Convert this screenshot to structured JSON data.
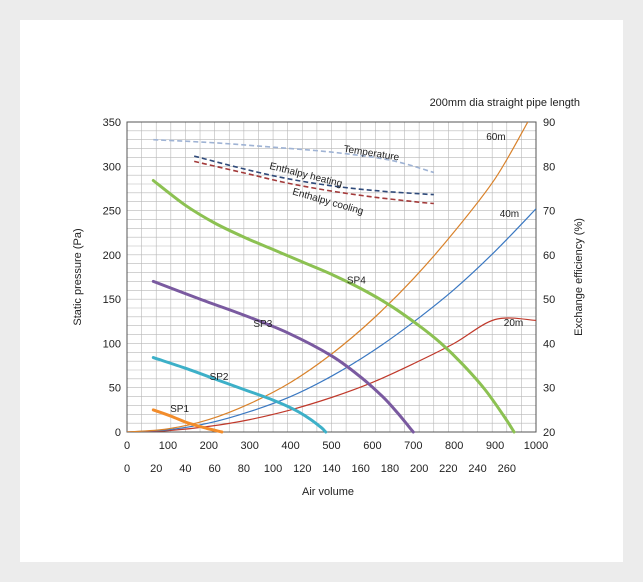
{
  "chart_data": {
    "type": "line",
    "title": "200mm dia straight pipe length",
    "xlabel": "Air volume",
    "ylabel": "Static pressure (Pa)",
    "y2label": "Exchange efficiency (%)",
    "x_primary": {
      "ticks": [
        0,
        100,
        200,
        300,
        400,
        500,
        600,
        700,
        800,
        900,
        1000
      ],
      "range": [
        0,
        1000
      ]
    },
    "x_secondary": {
      "ticks": [
        0,
        20,
        40,
        60,
        80,
        100,
        120,
        140,
        160,
        180,
        200,
        220,
        240,
        260
      ],
      "range": [
        0,
        280
      ]
    },
    "y_primary": {
      "ticks": [
        0,
        50,
        100,
        150,
        200,
        250,
        300,
        350
      ],
      "range": [
        0,
        350
      ]
    },
    "y_secondary": {
      "ticks": [
        20,
        30,
        40,
        50,
        60,
        70,
        80,
        90
      ],
      "range": [
        20,
        90
      ]
    },
    "grid": true,
    "fan_curves": [
      {
        "name": "SP1",
        "color": "#f28c2b",
        "points": [
          [
            18,
            25
          ],
          [
            30,
            18
          ],
          [
            42,
            10
          ],
          [
            55,
            4
          ],
          [
            65,
            0
          ]
        ]
      },
      {
        "name": "SP2",
        "color": "#3db0c8",
        "points": [
          [
            18,
            84
          ],
          [
            40,
            72
          ],
          [
            60,
            60
          ],
          [
            80,
            48
          ],
          [
            100,
            36
          ],
          [
            115,
            25
          ],
          [
            125,
            15
          ],
          [
            133,
            5
          ],
          [
            136,
            0
          ]
        ]
      },
      {
        "name": "SP3",
        "color": "#7a5aa0",
        "points": [
          [
            18,
            170
          ],
          [
            50,
            150
          ],
          [
            80,
            132
          ],
          [
            110,
            112
          ],
          [
            140,
            86
          ],
          [
            160,
            62
          ],
          [
            175,
            40
          ],
          [
            185,
            22
          ],
          [
            192,
            8
          ],
          [
            196,
            0
          ]
        ]
      },
      {
        "name": "SP4",
        "color": "#8cc152",
        "points": [
          [
            18,
            284
          ],
          [
            40,
            256
          ],
          [
            60,
            236
          ],
          [
            80,
            220
          ],
          [
            100,
            206
          ],
          [
            120,
            192
          ],
          [
            140,
            178
          ],
          [
            160,
            162
          ],
          [
            180,
            143
          ],
          [
            200,
            120
          ],
          [
            215,
            100
          ],
          [
            230,
            76
          ],
          [
            245,
            48
          ],
          [
            258,
            18
          ],
          [
            265,
            0
          ]
        ]
      }
    ],
    "pipe_curves": [
      {
        "name": "20m",
        "color": "#c0392b",
        "points": [
          [
            0,
            0
          ],
          [
            100,
            1.6
          ],
          [
            200,
            6.3
          ],
          [
            300,
            14
          ],
          [
            400,
            25
          ],
          [
            500,
            39
          ],
          [
            600,
            56
          ],
          [
            700,
            77
          ],
          [
            800,
            100
          ],
          [
            900,
            127
          ],
          [
            1000,
            126
          ]
        ]
      },
      {
        "name": "40m",
        "color": "#3a78c2",
        "points": [
          [
            0,
            0
          ],
          [
            100,
            2.5
          ],
          [
            200,
            10
          ],
          [
            300,
            23
          ],
          [
            400,
            40
          ],
          [
            500,
            63
          ],
          [
            600,
            91
          ],
          [
            700,
            124
          ],
          [
            800,
            161
          ],
          [
            900,
            204
          ],
          [
            1000,
            252
          ]
        ]
      },
      {
        "name": "60m",
        "color": "#d9822b",
        "points": [
          [
            0,
            0
          ],
          [
            100,
            3.5
          ],
          [
            200,
            14
          ],
          [
            300,
            32
          ],
          [
            400,
            56
          ],
          [
            500,
            88
          ],
          [
            600,
            127
          ],
          [
            700,
            173
          ],
          [
            800,
            226
          ],
          [
            900,
            286
          ],
          [
            980,
            350
          ]
        ]
      }
    ],
    "efficiency_curves": [
      {
        "name": "Temperature",
        "color": "#9fb3d4",
        "points": [
          [
            18,
            86
          ],
          [
            60,
            85.3
          ],
          [
            100,
            84.3
          ],
          [
            140,
            83.2
          ],
          [
            180,
            81.4
          ],
          [
            210,
            78.6
          ]
        ]
      },
      {
        "name": "Enthalpy heating",
        "color": "#2f4a7a",
        "points": [
          [
            46,
            82.3
          ],
          [
            80,
            79.4
          ],
          [
            110,
            77.2
          ],
          [
            140,
            75.6
          ],
          [
            170,
            74.5
          ],
          [
            200,
            73.8
          ],
          [
            210,
            73.6
          ]
        ]
      },
      {
        "name": "Enthalpy cooling",
        "color": "#a33a3a",
        "points": [
          [
            46,
            81.1
          ],
          [
            80,
            78.5
          ],
          [
            110,
            76.2
          ],
          [
            140,
            74.4
          ],
          [
            170,
            73.0
          ],
          [
            200,
            71.9
          ],
          [
            210,
            71.6
          ]
        ]
      }
    ],
    "labels": {
      "SP1": "SP1",
      "SP2": "SP2",
      "SP3": "SP3",
      "SP4": "SP4",
      "Temperature": "Temperature",
      "Enthalpy heating": "Enthalpy heating",
      "Enthalpy cooling": "Enthalpy cooling",
      "20m": "20m",
      "40m": "40m",
      "60m": "60m"
    }
  }
}
